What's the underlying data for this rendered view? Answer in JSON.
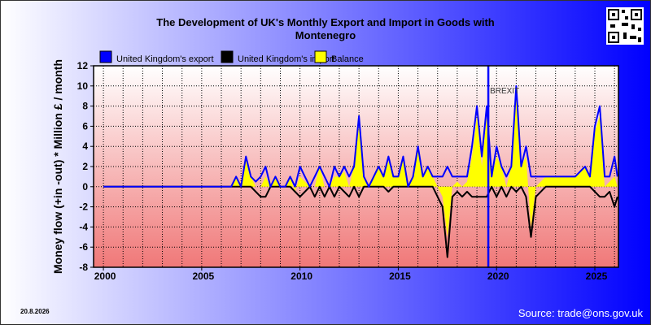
{
  "chart_data": {
    "type": "line",
    "title": [
      "The Development of UK's Monthly Export and Import in Goods with",
      "Montenegro"
    ],
    "y_label": "Money flow (+in -out) * Million £ / month",
    "date": "20.8.2026",
    "source": "Source: trade@ons.gov.uk",
    "annotation": {
      "x": 2019.58,
      "label": "BREXIT",
      "color": "#0000ff"
    },
    "x": [
      2000,
      2006.5,
      2006.75,
      2007,
      2007.25,
      2007.5,
      2007.75,
      2008,
      2008.25,
      2008.5,
      2008.75,
      2009,
      2009.25,
      2009.5,
      2009.75,
      2010,
      2010.25,
      2010.5,
      2010.75,
      2011,
      2011.25,
      2011.5,
      2011.75,
      2012,
      2012.25,
      2012.5,
      2012.75,
      2013,
      2013.25,
      2013.5,
      2013.75,
      2014,
      2014.25,
      2014.5,
      2014.75,
      2015,
      2015.25,
      2015.5,
      2015.75,
      2016,
      2016.25,
      2016.5,
      2016.75,
      2017,
      2017.25,
      2017.5,
      2017.75,
      2018,
      2018.25,
      2018.5,
      2018.75,
      2019,
      2019.25,
      2019.5,
      2019.75,
      2020,
      2020.25,
      2020.5,
      2020.75,
      2021,
      2021.25,
      2021.5,
      2021.75,
      2022,
      2022.5,
      2023,
      2023.5,
      2024,
      2024.5,
      2024.75,
      2025,
      2025.25,
      2025.5,
      2025.75,
      2026,
      2026.15
    ],
    "series": [
      {
        "name": "United Kingdom's export",
        "color": "#0000ff",
        "style": "line",
        "values": [
          0,
          0,
          1,
          0,
          3,
          1,
          0.5,
          1,
          2,
          0,
          1,
          0,
          0,
          1,
          0,
          2,
          1,
          0,
          1,
          2,
          1,
          0,
          2,
          1,
          2,
          1,
          2,
          7,
          1,
          0,
          1,
          2,
          1,
          3,
          1,
          1,
          3,
          0,
          1,
          4,
          1,
          2,
          1,
          1,
          1,
          2,
          1,
          1,
          1,
          1,
          4,
          8,
          3,
          8,
          1,
          4,
          2,
          1,
          2,
          10,
          2,
          4,
          1,
          1,
          1,
          1,
          1,
          1,
          2,
          1,
          6,
          8,
          1,
          1,
          3,
          1
        ]
      },
      {
        "name": "United Kingdom's import",
        "color": "#000000",
        "style": "line",
        "values": [
          0,
          0,
          0,
          0,
          0,
          0,
          -0.5,
          -1,
          -1,
          0,
          0,
          0,
          0,
          0,
          -0.5,
          -1,
          -0.5,
          0,
          -1,
          0,
          -1,
          0,
          -1,
          0,
          -0.5,
          -1,
          0,
          -1,
          0,
          0,
          0,
          0,
          0,
          -0.5,
          0,
          0,
          0,
          0,
          0,
          0,
          0,
          0,
          0,
          -1,
          -2,
          -7,
          -1,
          -0.5,
          -1,
          -0.5,
          -1,
          -1,
          -1,
          -1,
          0,
          -1,
          0,
          -1,
          0,
          -0.5,
          0,
          -1,
          -5,
          -1,
          0,
          0,
          0,
          0,
          0,
          0,
          -0.5,
          -1,
          -1,
          -0.5,
          -2,
          -1
        ]
      },
      {
        "name": "Balance",
        "color": "#ffff00",
        "style": "area",
        "values": [
          0,
          0,
          1,
          0,
          3,
          1,
          0,
          0,
          1,
          0,
          1,
          0,
          0,
          1,
          -0.5,
          1,
          0.5,
          0,
          0,
          2,
          0,
          0,
          1,
          1,
          1.5,
          0,
          2,
          6,
          1,
          0,
          1,
          2,
          1,
          2.5,
          1,
          1,
          3,
          0,
          1,
          4,
          1,
          2,
          1,
          0,
          -1,
          -5,
          0,
          0.5,
          0,
          0.5,
          3,
          7,
          2,
          7,
          1,
          3,
          2,
          0,
          2,
          9.5,
          2,
          3,
          -4,
          0,
          1,
          1,
          1,
          1,
          2,
          1,
          5.5,
          7,
          0,
          0.5,
          1,
          0
        ]
      }
    ],
    "xlim": [
      1999.5,
      2026.2
    ],
    "xticks": [
      2000,
      2005,
      2010,
      2015,
      2020,
      2025
    ],
    "x_minor_step": 1,
    "ylim": [
      -8,
      12
    ],
    "yticks": [
      -8,
      -6,
      -4,
      -2,
      0,
      2,
      4,
      6,
      8,
      10,
      12
    ],
    "grid": true
  }
}
